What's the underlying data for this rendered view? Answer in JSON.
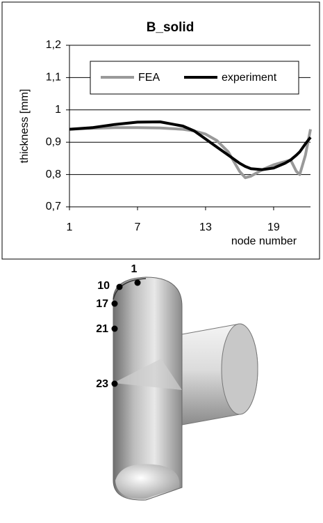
{
  "chart_data": {
    "type": "line",
    "title": "B_solid",
    "y_label": "thickness [mm]",
    "x_label": "node number",
    "x": [
      1,
      3,
      5,
      7,
      9,
      11,
      12,
      13,
      14,
      15,
      16,
      16.5,
      17,
      18,
      19,
      20,
      20.5,
      21,
      21.3,
      21.8,
      22.25
    ],
    "series": [
      {
        "name": "FEA",
        "color": "#999999",
        "values": [
          0.94,
          0.943,
          0.945,
          0.945,
          0.944,
          0.94,
          0.935,
          0.925,
          0.905,
          0.87,
          0.81,
          0.79,
          0.795,
          0.815,
          0.83,
          0.84,
          0.845,
          0.81,
          0.8,
          0.86,
          0.94
        ]
      },
      {
        "name": "experiment",
        "color": "#000000",
        "values": [
          0.94,
          0.945,
          0.955,
          0.962,
          0.963,
          0.95,
          0.935,
          0.91,
          0.885,
          0.86,
          0.835,
          0.825,
          0.818,
          0.815,
          0.82,
          0.835,
          0.845,
          0.86,
          0.87,
          0.895,
          0.915
        ]
      }
    ],
    "xlim": [
      1,
      22.25
    ],
    "xticks": [
      1,
      7,
      13,
      19
    ],
    "ylim": [
      0.7,
      1.2
    ],
    "yticks": [
      {
        "value": 0.7,
        "label": "0,7"
      },
      {
        "value": 0.8,
        "label": "0,8"
      },
      {
        "value": 0.9,
        "label": "0,9"
      },
      1,
      {
        "value": 1.1,
        "label": "1,1"
      },
      {
        "value": 1.2,
        "label": "1,2"
      }
    ],
    "grid": true,
    "legend": "top"
  },
  "model": {
    "labels": [
      "1",
      "10",
      "17",
      "21",
      "23"
    ]
  }
}
